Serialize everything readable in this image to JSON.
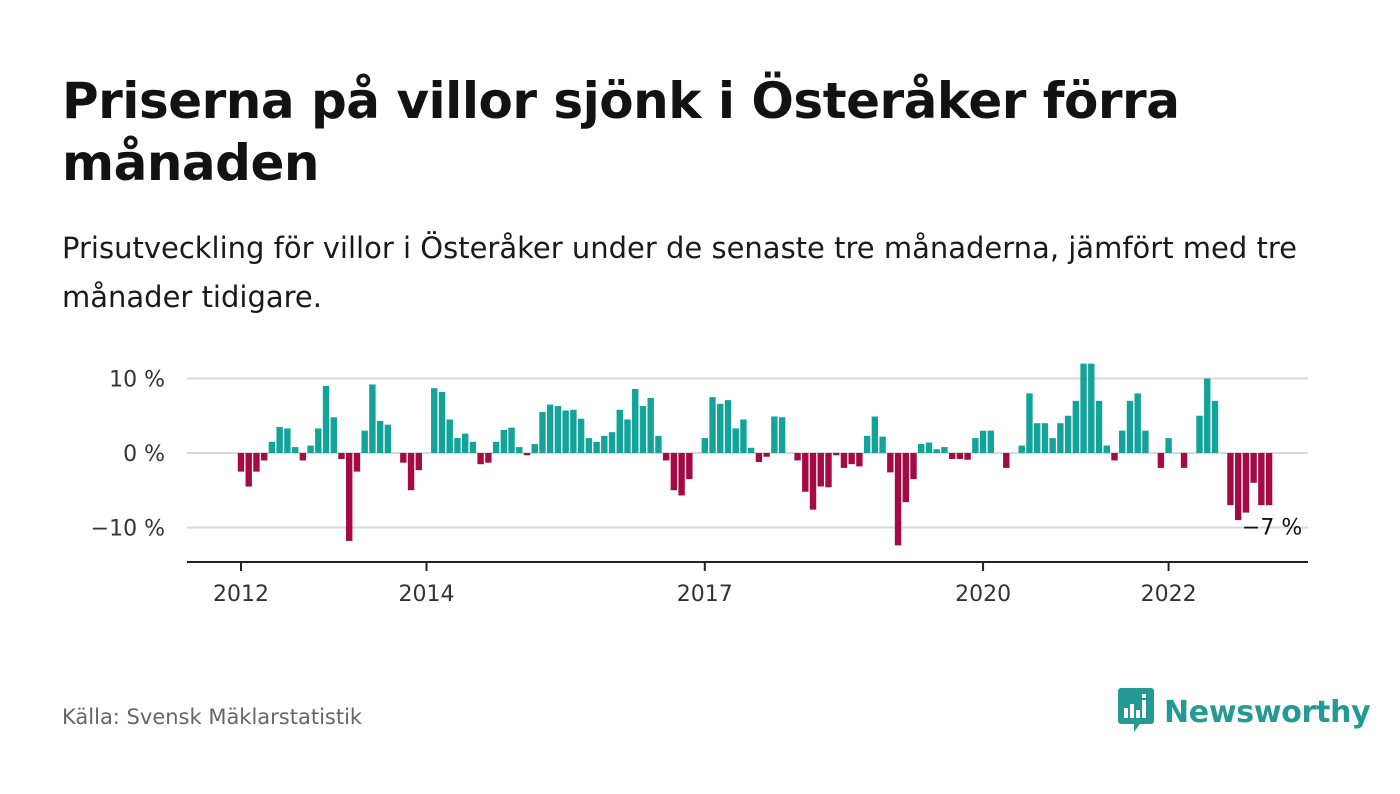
{
  "title": "Priserna på villor sjönk i Österåker förra månaden",
  "subtitle": "Prisutveckling för villor i Österåker under de senaste tre månaderna, jämfört med tre månader tidigare.",
  "source": "Källa: Svensk Mäklarstatistik",
  "brand": "Newsworthy",
  "colors": {
    "positive": "#13a39a",
    "negative": "#a50a44",
    "grid": "#d9d9d9",
    "axis": "#222222",
    "brand": "#239b94"
  },
  "chart_data": {
    "type": "bar",
    "ylim": [
      -15,
      15
    ],
    "yticks": [
      {
        "value": 10,
        "label": "10 %"
      },
      {
        "value": 0,
        "label": "0 %"
      },
      {
        "value": -10,
        "label": "−10 %"
      }
    ],
    "xticks": [
      {
        "index": 0,
        "label": "2012"
      },
      {
        "index": 24,
        "label": "2014"
      },
      {
        "index": 60,
        "label": "2017"
      },
      {
        "index": 96,
        "label": "2020"
      },
      {
        "index": 120,
        "label": "2022"
      }
    ],
    "annotation": {
      "index": 133,
      "label": "−7 %"
    },
    "values": [
      -2.5,
      -4.5,
      -2.5,
      -1,
      1.5,
      3.5,
      3.3,
      0.8,
      -1,
      1,
      3.3,
      9,
      4.8,
      -0.8,
      -11.8,
      -2.5,
      3,
      9.2,
      4.3,
      3.8,
      0,
      -1.3,
      -5,
      -2.3,
      0,
      8.7,
      8.2,
      4.5,
      2,
      2.6,
      1.5,
      -1.5,
      -1.3,
      1.5,
      3.1,
      3.4,
      0.8,
      -0.3,
      1.2,
      5.5,
      6.5,
      6.3,
      5.7,
      5.8,
      4.6,
      2,
      1.5,
      2.3,
      2.8,
      5.8,
      4.5,
      8.6,
      6.3,
      7.4,
      2.3,
      -1,
      -5,
      -5.7,
      -3.5,
      0,
      2,
      7.5,
      6.6,
      7.1,
      3.3,
      4.5,
      0.7,
      -1.2,
      -0.5,
      4.9,
      4.8,
      0,
      -1,
      -5.2,
      -7.6,
      -4.5,
      -4.6,
      -0.3,
      -2,
      -1.5,
      -1.8,
      2.3,
      4.9,
      2.2,
      -2.6,
      -12.4,
      -6.6,
      -3.5,
      1.2,
      1.4,
      0.5,
      0.8,
      -0.8,
      -0.8,
      -0.9,
      2,
      3,
      3,
      0,
      -2,
      0,
      1,
      8,
      4,
      4,
      2,
      4,
      5,
      7,
      12,
      12,
      7,
      1,
      -1,
      3,
      7,
      8,
      3,
      0,
      -2,
      2,
      0,
      -2,
      0,
      5,
      10,
      7,
      0,
      -7,
      -9,
      -8,
      -4,
      -7,
      -7
    ]
  }
}
